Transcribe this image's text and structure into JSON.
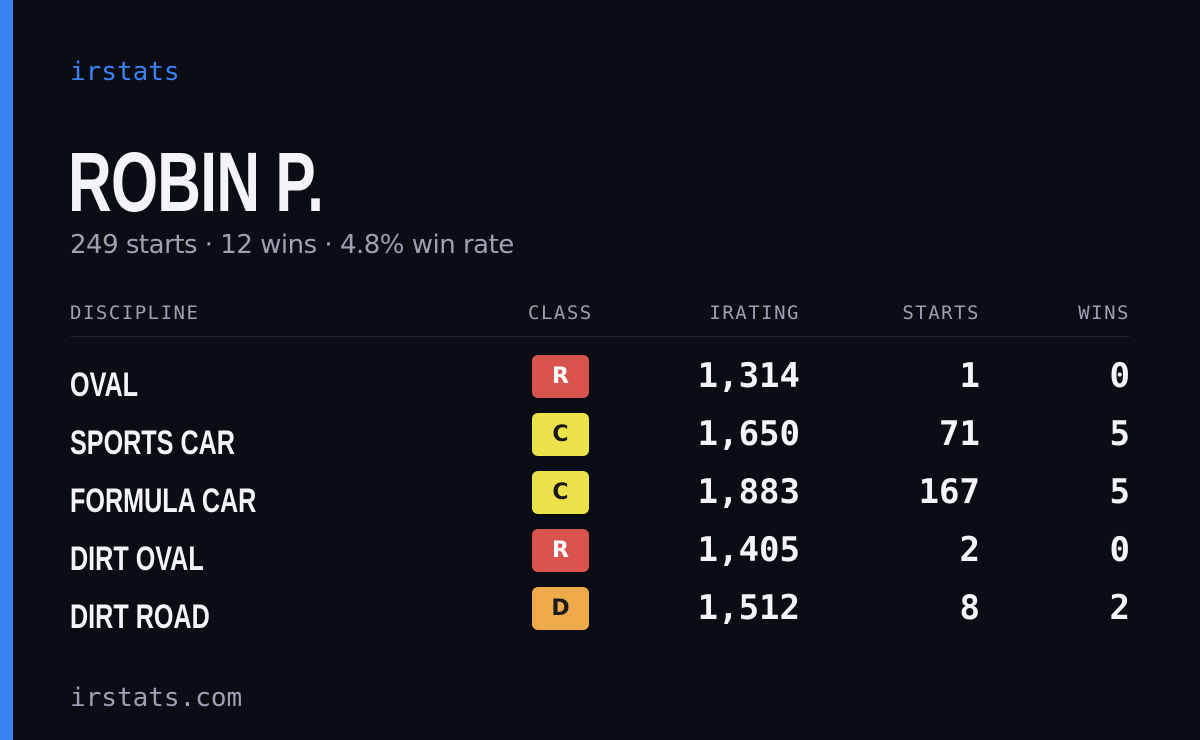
{
  "colors": {
    "background": "#0a0d14",
    "accent": "#3b82f6",
    "text_primary": "#f3f4f7",
    "text_muted": "#9aa2b1",
    "class_R": "#d9534f",
    "class_C": "#ece24a",
    "class_D": "#eeaa4a"
  },
  "brand": "irstats",
  "profile": {
    "name": "ROBIN P.",
    "summary": "249 starts · 12 wins · 4.8% win rate"
  },
  "table": {
    "headers": {
      "discipline": "DISCIPLINE",
      "class": "CLASS",
      "irating": "IRATING",
      "starts": "STARTS",
      "wins": "WINS"
    },
    "rows": [
      {
        "discipline": "OVAL",
        "class": "R",
        "irating": "1,314",
        "starts": "1",
        "wins": "0"
      },
      {
        "discipline": "SPORTS CAR",
        "class": "C",
        "irating": "1,650",
        "starts": "71",
        "wins": "5"
      },
      {
        "discipline": "FORMULA CAR",
        "class": "C",
        "irating": "1,883",
        "starts": "167",
        "wins": "5"
      },
      {
        "discipline": "DIRT OVAL",
        "class": "R",
        "irating": "1,405",
        "starts": "2",
        "wins": "0"
      },
      {
        "discipline": "DIRT ROAD",
        "class": "D",
        "irating": "1,512",
        "starts": "8",
        "wins": "2"
      }
    ]
  },
  "footer": "irstats.com"
}
